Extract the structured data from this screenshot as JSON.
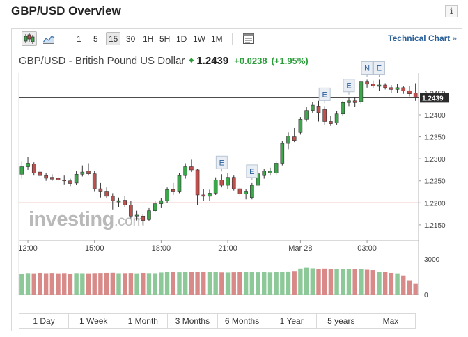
{
  "page": {
    "title": "GBP/USD Overview",
    "info_label": "i"
  },
  "toolbar": {
    "chart_type_icons": [
      "candlestick-icon",
      "area-chart-icon"
    ],
    "intervals": [
      {
        "label": "1",
        "active": false
      },
      {
        "label": "5",
        "active": false
      },
      {
        "label": "15",
        "active": true
      },
      {
        "label": "30",
        "active": false
      },
      {
        "label": "1H",
        "active": false
      },
      {
        "label": "5H",
        "active": false
      },
      {
        "label": "1D",
        "active": false
      },
      {
        "label": "1W",
        "active": false
      },
      {
        "label": "1M",
        "active": false
      }
    ],
    "data_table_icon": "data-table-icon",
    "technical_chart_label": "Technical Chart",
    "technical_chart_arrow": "»"
  },
  "quote": {
    "name": "GBP/USD - British Pound US Dollar",
    "direction_icon": "up-arrow-icon",
    "last": "1.2439",
    "change": "+0.0238",
    "change_pct": "(+1.95%)",
    "up_color": "#2a9d3a"
  },
  "watermark": {
    "main": "investing",
    "suffix": ".com"
  },
  "chart_data": {
    "type": "candlestick",
    "title": "",
    "xlabel": "",
    "ylabel": "",
    "ylim": [
      1.2115,
      1.2495
    ],
    "y_ticks": [
      "1.2450",
      "1.2400",
      "1.2350",
      "1.2300",
      "1.2250",
      "1.2200",
      "1.2150"
    ],
    "x_ticks": [
      {
        "label": "12:00",
        "index": 1
      },
      {
        "label": "15:00",
        "index": 12
      },
      {
        "label": "18:00",
        "index": 23
      },
      {
        "label": "21:00",
        "index": 34
      },
      {
        "label": "Mar 28",
        "index": 46
      },
      {
        "label": "03:00",
        "index": 57
      }
    ],
    "current_price_label": "1.2439",
    "reference_lines": [
      {
        "value": 1.2439,
        "style": "current-price",
        "color": "#333333"
      },
      {
        "value": 1.22,
        "style": "support",
        "color": "#c0392b"
      }
    ],
    "up_color": "#3ca64b",
    "down_color": "#c0504d",
    "candles": [
      {
        "o": 1.2265,
        "h": 1.2295,
        "l": 1.2255,
        "c": 1.2282
      },
      {
        "o": 1.2282,
        "h": 1.2305,
        "l": 1.2275,
        "c": 1.229
      },
      {
        "o": 1.2288,
        "h": 1.2292,
        "l": 1.2262,
        "c": 1.2268
      },
      {
        "o": 1.227,
        "h": 1.2278,
        "l": 1.2258,
        "c": 1.2262
      },
      {
        "o": 1.2262,
        "h": 1.2268,
        "l": 1.225,
        "c": 1.2256
      },
      {
        "o": 1.2258,
        "h": 1.2265,
        "l": 1.225,
        "c": 1.2254
      },
      {
        "o": 1.2256,
        "h": 1.2262,
        "l": 1.2248,
        "c": 1.2252
      },
      {
        "o": 1.2252,
        "h": 1.2262,
        "l": 1.2242,
        "c": 1.225
      },
      {
        "o": 1.225,
        "h": 1.2255,
        "l": 1.2238,
        "c": 1.2244
      },
      {
        "o": 1.2245,
        "h": 1.2272,
        "l": 1.224,
        "c": 1.2265
      },
      {
        "o": 1.2265,
        "h": 1.2285,
        "l": 1.226,
        "c": 1.227
      },
      {
        "o": 1.2272,
        "h": 1.229,
        "l": 1.2262,
        "c": 1.2266
      },
      {
        "o": 1.2266,
        "h": 1.2272,
        "l": 1.2225,
        "c": 1.2232
      },
      {
        "o": 1.2232,
        "h": 1.2245,
        "l": 1.2212,
        "c": 1.2225
      },
      {
        "o": 1.2225,
        "h": 1.2235,
        "l": 1.221,
        "c": 1.2215
      },
      {
        "o": 1.2215,
        "h": 1.2222,
        "l": 1.2185,
        "c": 1.2205
      },
      {
        "o": 1.2202,
        "h": 1.2212,
        "l": 1.219,
        "c": 1.2205
      },
      {
        "o": 1.2206,
        "h": 1.2215,
        "l": 1.219,
        "c": 1.2195
      },
      {
        "o": 1.2195,
        "h": 1.2205,
        "l": 1.2165,
        "c": 1.217
      },
      {
        "o": 1.217,
        "h": 1.2182,
        "l": 1.216,
        "c": 1.2172
      },
      {
        "o": 1.217,
        "h": 1.2175,
        "l": 1.215,
        "c": 1.216
      },
      {
        "o": 1.2162,
        "h": 1.2188,
        "l": 1.2158,
        "c": 1.2182
      },
      {
        "o": 1.2182,
        "h": 1.2205,
        "l": 1.2178,
        "c": 1.2198
      },
      {
        "o": 1.2198,
        "h": 1.221,
        "l": 1.2188,
        "c": 1.2205
      },
      {
        "o": 1.2205,
        "h": 1.2235,
        "l": 1.22,
        "c": 1.223
      },
      {
        "o": 1.223,
        "h": 1.2245,
        "l": 1.2218,
        "c": 1.2225
      },
      {
        "o": 1.2225,
        "h": 1.2268,
        "l": 1.2222,
        "c": 1.2262
      },
      {
        "o": 1.2262,
        "h": 1.229,
        "l": 1.2255,
        "c": 1.2282
      },
      {
        "o": 1.2282,
        "h": 1.2298,
        "l": 1.227,
        "c": 1.2275
      },
      {
        "o": 1.2275,
        "h": 1.2278,
        "l": 1.2195,
        "c": 1.2218
      },
      {
        "o": 1.2218,
        "h": 1.2232,
        "l": 1.2205,
        "c": 1.2215
      },
      {
        "o": 1.2215,
        "h": 1.223,
        "l": 1.2205,
        "c": 1.2222
      },
      {
        "o": 1.2222,
        "h": 1.2258,
        "l": 1.2218,
        "c": 1.2252
      },
      {
        "o": 1.2252,
        "h": 1.2265,
        "l": 1.2235,
        "c": 1.224
      },
      {
        "o": 1.224,
        "h": 1.2268,
        "l": 1.2232,
        "c": 1.2258
      },
      {
        "o": 1.2258,
        "h": 1.2262,
        "l": 1.2228,
        "c": 1.2232
      },
      {
        "o": 1.2232,
        "h": 1.2235,
        "l": 1.2215,
        "c": 1.222
      },
      {
        "o": 1.222,
        "h": 1.2232,
        "l": 1.2208,
        "c": 1.2225
      },
      {
        "o": 1.2212,
        "h": 1.2245,
        "l": 1.2208,
        "c": 1.224
      },
      {
        "o": 1.224,
        "h": 1.2272,
        "l": 1.2236,
        "c": 1.2266
      },
      {
        "o": 1.2262,
        "h": 1.2278,
        "l": 1.2255,
        "c": 1.2272
      },
      {
        "o": 1.2268,
        "h": 1.228,
        "l": 1.2262,
        "c": 1.2272
      },
      {
        "o": 1.2268,
        "h": 1.2295,
        "l": 1.2262,
        "c": 1.229
      },
      {
        "o": 1.229,
        "h": 1.234,
        "l": 1.2285,
        "c": 1.2335
      },
      {
        "o": 1.2335,
        "h": 1.236,
        "l": 1.2322,
        "c": 1.2352
      },
      {
        "o": 1.235,
        "h": 1.237,
        "l": 1.2338,
        "c": 1.2342
      },
      {
        "o": 1.236,
        "h": 1.2395,
        "l": 1.2355,
        "c": 1.239
      },
      {
        "o": 1.239,
        "h": 1.2418,
        "l": 1.2385,
        "c": 1.241
      },
      {
        "o": 1.241,
        "h": 1.243,
        "l": 1.2405,
        "c": 1.2422
      },
      {
        "o": 1.242,
        "h": 1.2432,
        "l": 1.2385,
        "c": 1.2405
      },
      {
        "o": 1.2412,
        "h": 1.242,
        "l": 1.2378,
        "c": 1.2385
      },
      {
        "o": 1.2385,
        "h": 1.2398,
        "l": 1.2375,
        "c": 1.238
      },
      {
        "o": 1.2382,
        "h": 1.2408,
        "l": 1.2378,
        "c": 1.2402
      },
      {
        "o": 1.2402,
        "h": 1.2432,
        "l": 1.2398,
        "c": 1.2428
      },
      {
        "o": 1.2428,
        "h": 1.244,
        "l": 1.242,
        "c": 1.2432
      },
      {
        "o": 1.2432,
        "h": 1.244,
        "l": 1.2418,
        "c": 1.2428
      },
      {
        "o": 1.243,
        "h": 1.2478,
        "l": 1.2425,
        "c": 1.2475
      },
      {
        "o": 1.2475,
        "h": 1.248,
        "l": 1.2462,
        "c": 1.247
      },
      {
        "o": 1.247,
        "h": 1.2478,
        "l": 1.2462,
        "c": 1.2466
      },
      {
        "o": 1.2465,
        "h": 1.248,
        "l": 1.2455,
        "c": 1.2468
      },
      {
        "o": 1.2468,
        "h": 1.2472,
        "l": 1.2458,
        "c": 1.2462
      },
      {
        "o": 1.2462,
        "h": 1.2468,
        "l": 1.245,
        "c": 1.2458
      },
      {
        "o": 1.2458,
        "h": 1.247,
        "l": 1.245,
        "c": 1.2462
      },
      {
        "o": 1.2462,
        "h": 1.2466,
        "l": 1.2448,
        "c": 1.2455
      },
      {
        "o": 1.2455,
        "h": 1.2465,
        "l": 1.2442,
        "c": 1.2448
      },
      {
        "o": 1.245,
        "h": 1.2472,
        "l": 1.2432,
        "c": 1.2439
      }
    ],
    "event_markers": [
      {
        "label": "E",
        "index": 33
      },
      {
        "label": "E",
        "index": 38
      },
      {
        "label": "E",
        "index": 50
      },
      {
        "label": "E",
        "index": 54
      },
      {
        "label": "N",
        "index": 57
      },
      {
        "label": "E",
        "index": 59
      }
    ],
    "volume": {
      "y_ticks": [
        "3000",
        "0"
      ],
      "ylim": [
        0,
        3400
      ],
      "values": [
        1750,
        1800,
        1780,
        1820,
        1790,
        1810,
        1780,
        1800,
        1760,
        1800,
        1790,
        1780,
        1800,
        1810,
        1820,
        1830,
        1790,
        1800,
        1810,
        1780,
        1820,
        1800,
        1790,
        1850,
        1900,
        1880,
        1870,
        1900,
        1910,
        1890,
        1880,
        1900,
        1880,
        1860,
        1850,
        1870,
        1880,
        1900,
        1880,
        1870,
        1890,
        1860,
        1880,
        1910,
        1940,
        1980,
        2180,
        2250,
        2200,
        2150,
        2180,
        2120,
        2150,
        2140,
        2160,
        2130,
        2140,
        2080,
        2050,
        1900,
        1880,
        1820,
        1780,
        1600,
        1200,
        900
      ],
      "colors_up_down": true
    }
  },
  "range_buttons": [
    "1 Day",
    "1 Week",
    "1 Month",
    "3 Months",
    "6 Months",
    "1 Year",
    "5 years",
    "Max"
  ]
}
